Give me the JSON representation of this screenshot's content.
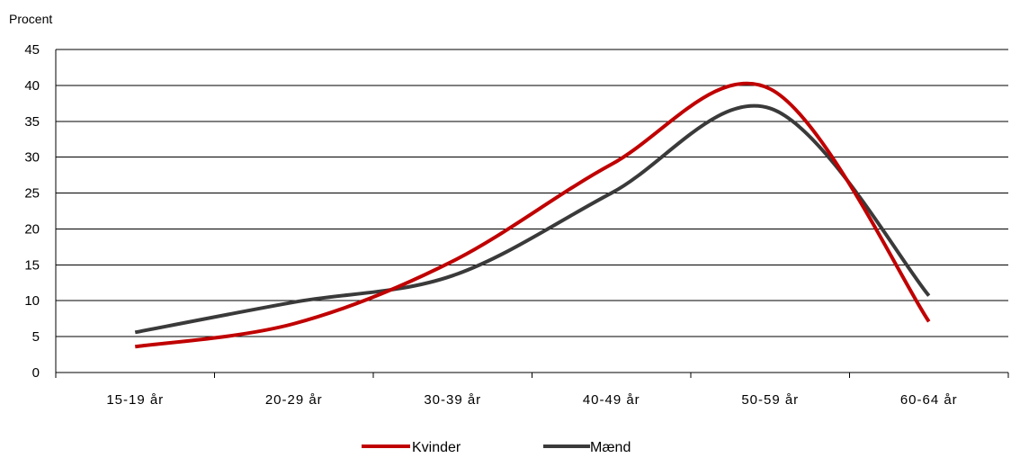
{
  "chart_data": {
    "type": "line",
    "ylabel": "Procent",
    "xlabel": "",
    "categories": [
      "15-19 år",
      "20-29 år",
      "30-39 år",
      "40-49 år",
      "50-59 år",
      "60-64 år"
    ],
    "ylim": [
      0,
      45
    ],
    "yticks": [
      0,
      5,
      10,
      15,
      20,
      25,
      30,
      35,
      40,
      45
    ],
    "grid": true,
    "legend_position": "bottom-center",
    "series": [
      {
        "name": "Kvinder",
        "color": "#c00000",
        "values": [
          3.6,
          6.8,
          15.5,
          29.0,
          39.5,
          7.1
        ]
      },
      {
        "name": "Mænd",
        "color": "#3a3a3a",
        "values": [
          5.6,
          9.8,
          13.5,
          25.0,
          36.8,
          10.7
        ]
      }
    ]
  }
}
